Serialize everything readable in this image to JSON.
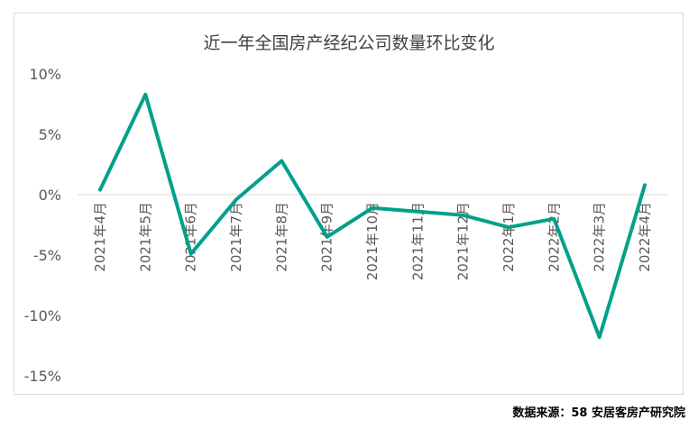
{
  "chart_data": {
    "type": "line",
    "title": "近一年全国房产经纪公司数量环比变化",
    "categories": [
      "2021年4月",
      "2021年5月",
      "2021年6月",
      "2021年7月",
      "2021年8月",
      "2021年9月",
      "2021年10月",
      "2021年11月",
      "2021年12月",
      "2022年1月",
      "2022年2月",
      "2022年3月",
      "2022年4月"
    ],
    "series": [
      {
        "values": [
          0.4,
          8.3,
          -4.9,
          -0.4,
          2.8,
          -3.5,
          -1.1,
          -1.4,
          -1.7,
          -2.7,
          -2.0,
          -11.8,
          0.8
        ]
      }
    ],
    "y_ticks": [
      10,
      5,
      0,
      -5,
      -10,
      -15
    ],
    "y_tick_labels": [
      "10%",
      "5%",
      "0%",
      "-5%",
      "-10%",
      "-15%"
    ],
    "ylim": [
      -15,
      10
    ],
    "grid": false,
    "line_color": "#00a08a"
  },
  "source": "数据来源：58 安居客房产研究院"
}
